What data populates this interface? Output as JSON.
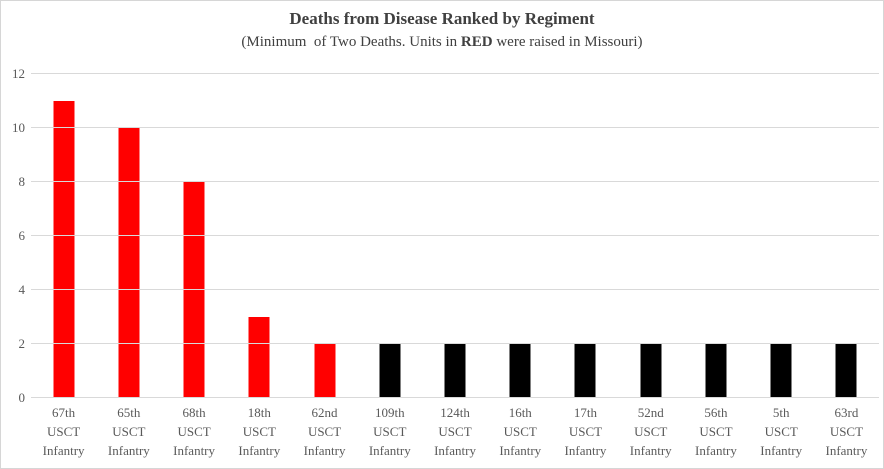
{
  "chart_data": {
    "type": "bar",
    "title": "Deaths from Disease Ranked by Regiment",
    "subtitle": {
      "prefix": "(Minimum  of Two Deaths. Units in ",
      "highlight": "RED",
      "suffix": " were raised in Missouri)"
    },
    "categories": [
      "67th USCT Infantry",
      "65th USCT Infantry",
      "68th USCT Infantry",
      "18th USCT Infantry",
      "62nd USCT Infantry",
      "109th USCT Infantry",
      "124th USCT Infantry",
      "16th USCT Infantry",
      "17th USCT Infantry",
      "52nd USCT Infantry",
      "56th USCT Infantry",
      "5th USCT Infantry",
      "63rd USCT Infantry"
    ],
    "values": [
      11,
      10,
      8,
      3,
      2,
      2,
      2,
      2,
      2,
      2,
      2,
      2,
      2
    ],
    "raised_in_missouri": [
      true,
      true,
      true,
      true,
      true,
      false,
      false,
      false,
      false,
      false,
      false,
      false,
      false
    ],
    "yticks": [
      0,
      2,
      4,
      6,
      8,
      10,
      12
    ],
    "ylim": [
      0,
      12
    ],
    "xlabel": "",
    "ylabel": "",
    "grid": true,
    "legend": "none",
    "colors": {
      "missouri_bar": "#ff0000",
      "other_bar": "#000000",
      "highlight_text": "#ff0000",
      "title_text": "#404040",
      "axis_text": "#595959",
      "gridline": "#d9d9d9"
    }
  }
}
